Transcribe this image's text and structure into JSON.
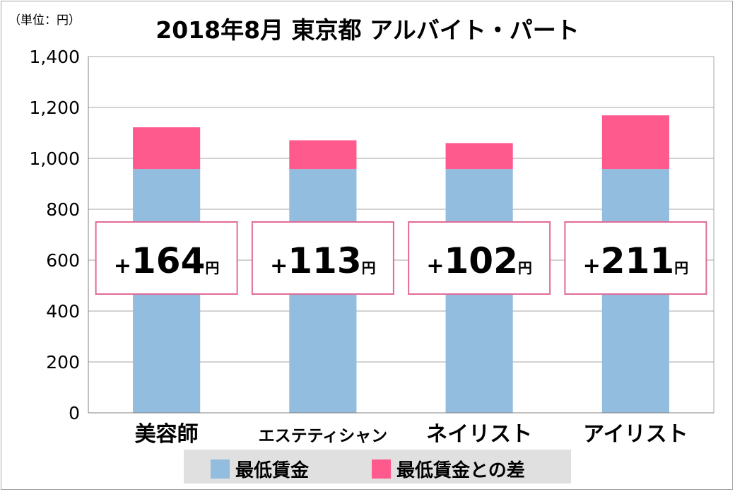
{
  "chart_data": {
    "type": "stacked-bar",
    "title": "2018年8月 東京都 アルバイト・パート",
    "unit_label": "（単位：円）",
    "categories": [
      "美容師",
      "エステティシャン",
      "ネイリスト",
      "アイリスト"
    ],
    "series": [
      {
        "name": "最低賃金",
        "color": "#92bddf",
        "values": [
          958,
          958,
          958,
          958
        ]
      },
      {
        "name": "最低賃金との差",
        "color": "#ff5a8e",
        "values": [
          164,
          113,
          102,
          211
        ]
      }
    ],
    "annotations": [
      {
        "sign": "+",
        "value": "164",
        "unit": "円"
      },
      {
        "sign": "+",
        "value": "113",
        "unit": "円"
      },
      {
        "sign": "+",
        "value": "102",
        "unit": "円"
      },
      {
        "sign": "+",
        "value": "211",
        "unit": "円"
      }
    ],
    "y_ticks": [
      "0",
      "200",
      "400",
      "600",
      "800",
      "1,000",
      "1,200",
      "1,400"
    ],
    "ylim": [
      0,
      1400
    ],
    "grid": true,
    "legend_position": "bottom"
  }
}
